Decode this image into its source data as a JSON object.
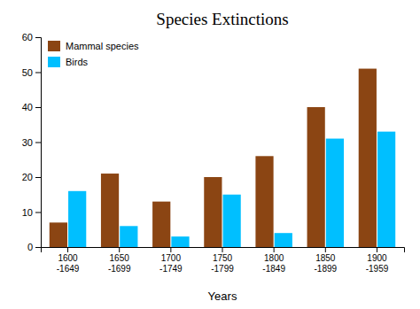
{
  "chart_data": {
    "type": "bar",
    "title": "Species Extinctions",
    "xlabel": "Years",
    "categories": [
      "1600\n-1649",
      "1650\n-1699",
      "1700\n-1749",
      "1750\n-1799",
      "1800\n-1849",
      "1850\n-1899",
      "1900\n-1959"
    ],
    "series": [
      {
        "name": "Mammal species",
        "color": "#8B4513",
        "values": [
          7,
          21,
          13,
          20,
          26,
          40,
          51
        ]
      },
      {
        "name": "Birds",
        "color": "#00BFFF",
        "values": [
          16,
          6,
          3,
          15,
          4,
          31,
          33
        ]
      }
    ],
    "ylim": [
      0,
      60
    ],
    "yticks": [
      0,
      10,
      20,
      30,
      40,
      50,
      60
    ],
    "grid": false,
    "legend": "upper left"
  }
}
